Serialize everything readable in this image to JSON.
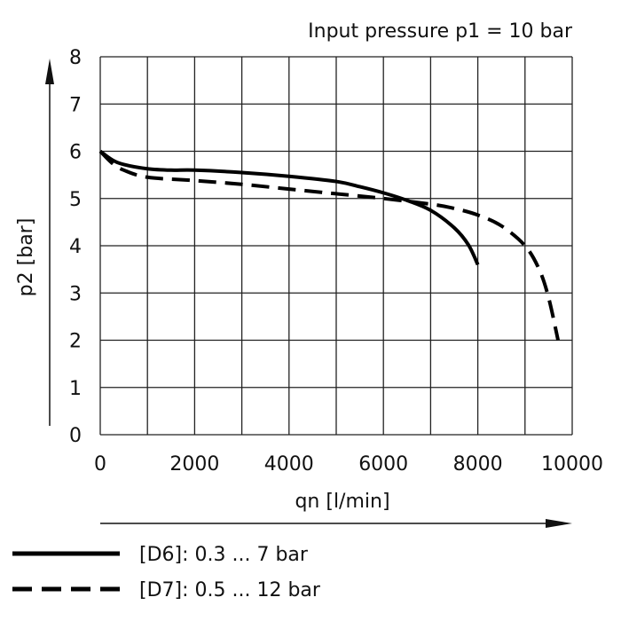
{
  "chart_data": {
    "type": "line",
    "title": "",
    "annotation": "Input pressure p1 = 10 bar",
    "xlabel": "qn  [l/min]",
    "ylabel": "p2  [bar]",
    "xlim": [
      0,
      10000
    ],
    "ylim": [
      0,
      8
    ],
    "xticks": [
      "0",
      "2000",
      "4000",
      "6000",
      "8000",
      "10000"
    ],
    "yticks": [
      "0",
      "1",
      "2",
      "3",
      "4",
      "5",
      "6",
      "7",
      "8"
    ],
    "grid": true,
    "grid_x_step": 1000,
    "grid_y_step": 1,
    "legend_position": "bottom-left",
    "series": [
      {
        "name": "[D6]: 0.3 ... 7 bar",
        "style": "solid",
        "color": "#000000",
        "x": [
          0,
          250,
          500,
          1000,
          1500,
          2000,
          3000,
          4000,
          5000,
          5500,
          6000,
          6500,
          7000,
          7500,
          7800,
          8000
        ],
        "y": [
          6.0,
          5.82,
          5.72,
          5.63,
          5.6,
          5.6,
          5.55,
          5.47,
          5.36,
          5.25,
          5.12,
          4.96,
          4.75,
          4.38,
          4.02,
          3.6
        ]
      },
      {
        "name": "[D7]: 0.5 ... 12 bar",
        "style": "dashed",
        "color": "#000000",
        "x": [
          0,
          250,
          500,
          1000,
          2000,
          3000,
          4000,
          5000,
          6000,
          7000,
          7500,
          8000,
          8500,
          9000,
          9300,
          9500,
          9700
        ],
        "y": [
          6.0,
          5.75,
          5.6,
          5.45,
          5.38,
          5.3,
          5.2,
          5.1,
          5.0,
          4.88,
          4.79,
          4.65,
          4.42,
          4.0,
          3.5,
          2.9,
          2.0
        ]
      }
    ]
  }
}
